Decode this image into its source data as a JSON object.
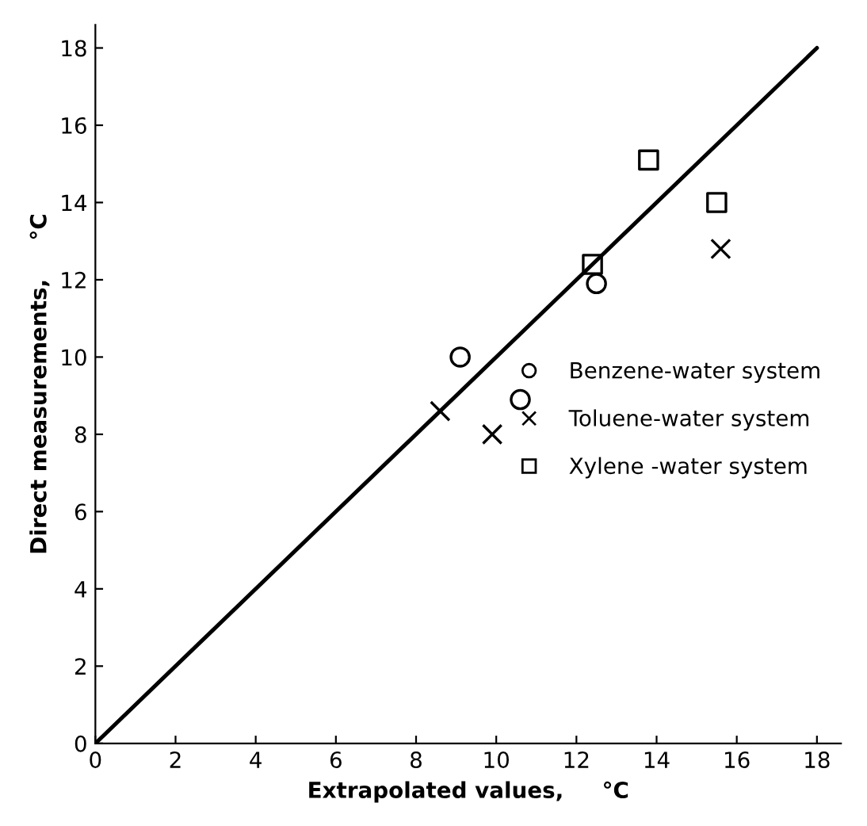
{
  "chart_data": {
    "type": "scatter",
    "xlabel": "Extrapolated values,     °C",
    "ylabel": "Direct measurements,     °C",
    "xlim": [
      0,
      18.6
    ],
    "ylim": [
      0,
      18.6
    ],
    "xticks": [
      0,
      2,
      4,
      6,
      8,
      10,
      12,
      14,
      16,
      18
    ],
    "yticks": [
      0,
      2,
      4,
      6,
      8,
      10,
      12,
      14,
      16,
      18
    ],
    "grid": false,
    "legend": "right",
    "series": [
      {
        "type": "line",
        "color": "#000000",
        "x": [
          0,
          18
        ],
        "values": [
          0,
          18
        ],
        "marker": "none",
        "line_style": "solid"
      },
      {
        "name": "Benzene-water system",
        "color": "#000000",
        "marker": "circle",
        "x": [
          12.5,
          9.1,
          10.6
        ],
        "values": [
          11.9,
          10.0,
          8.9
        ]
      },
      {
        "name": "Toluene-water system",
        "color": "#000000",
        "marker": "cross",
        "x": [
          8.6,
          9.9,
          15.6
        ],
        "values": [
          8.6,
          8.0,
          12.8
        ]
      },
      {
        "name": "Xylene -water system",
        "color": "#000000",
        "marker": "square",
        "x": [
          12.4,
          13.8,
          15.5
        ],
        "values": [
          12.4,
          15.1,
          14.0
        ]
      }
    ]
  }
}
